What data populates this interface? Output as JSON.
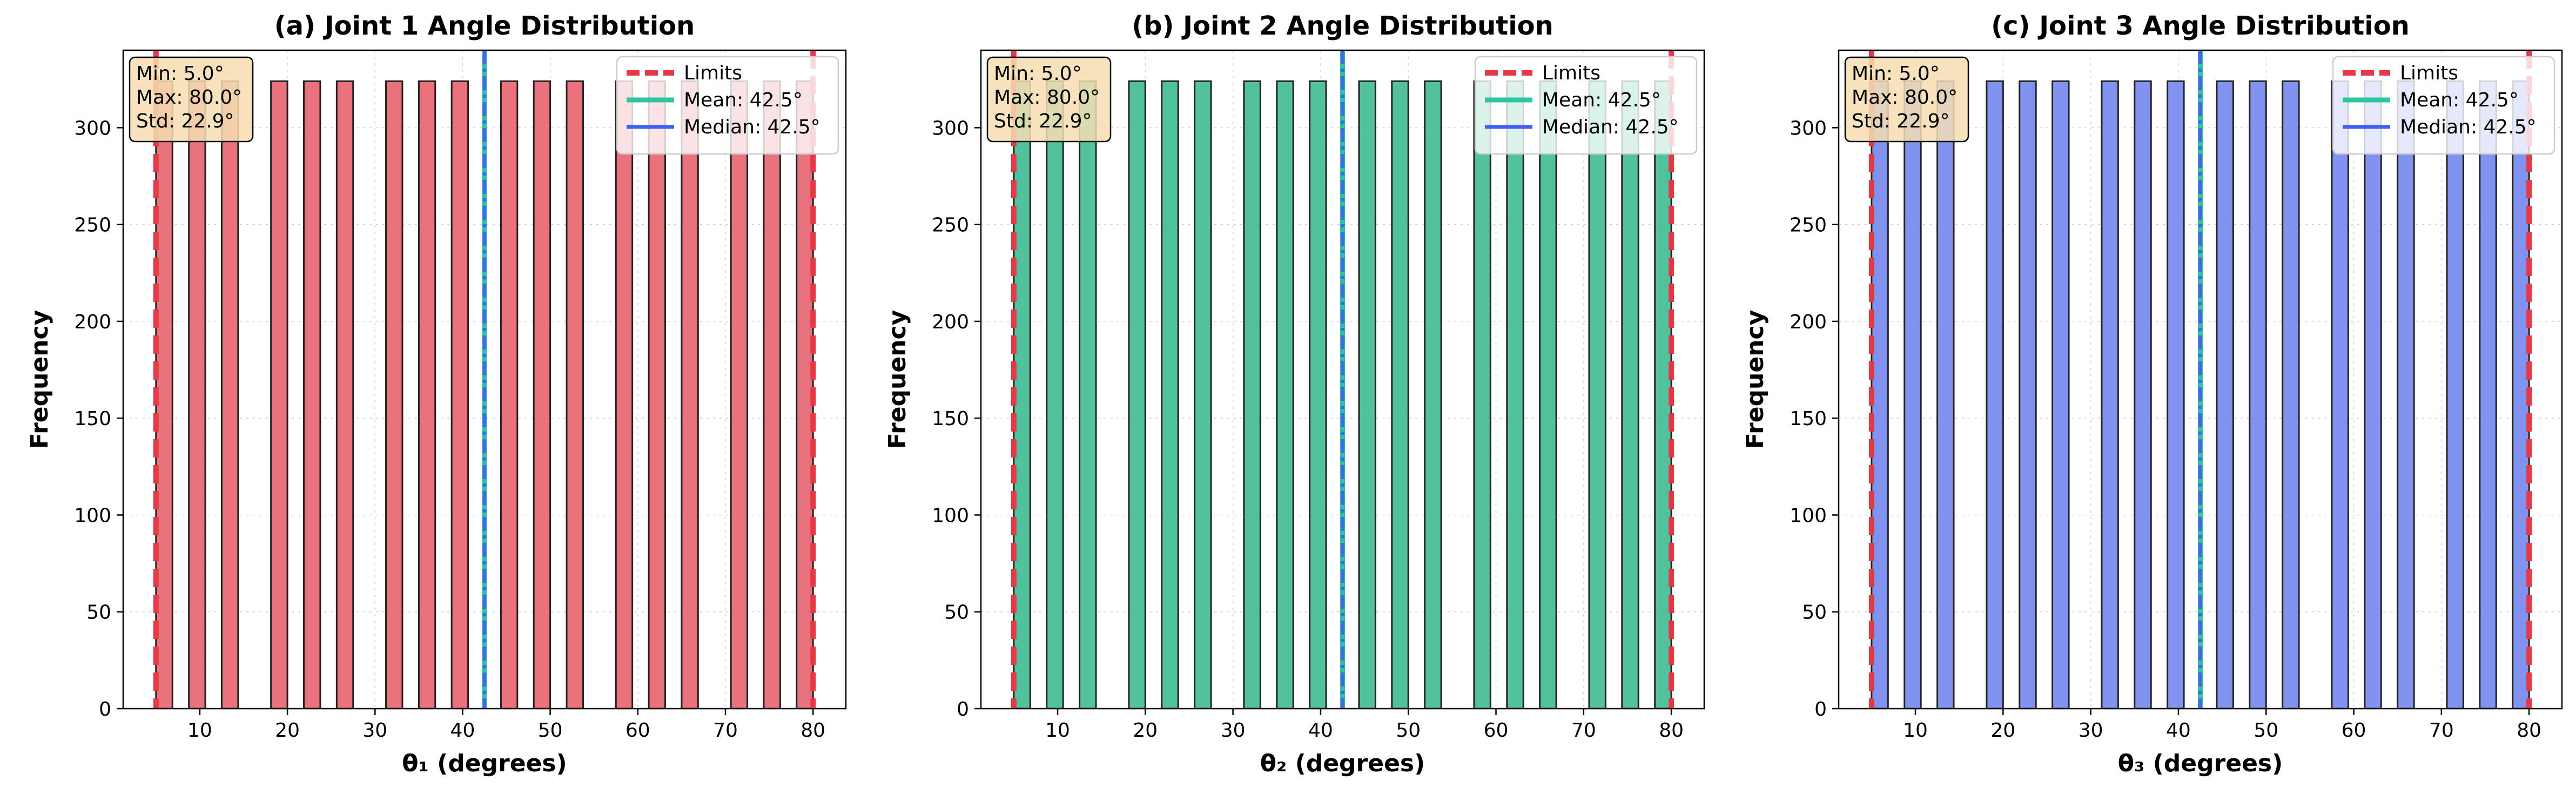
{
  "chart_data": [
    {
      "type": "bar",
      "title": "(a) Joint 1 Angle Distribution",
      "xlabel": "θ₁ (degrees)",
      "ylabel": "Frequency",
      "bar_color": "#e8636f",
      "xlim": [
        1.25,
        83.75
      ],
      "ylim": [
        0,
        340
      ],
      "xticks": [
        10,
        20,
        30,
        40,
        50,
        60,
        70,
        80
      ],
      "yticks": [
        0,
        50,
        100,
        150,
        200,
        250,
        300
      ],
      "bin_width": 1.875,
      "bin_starts": [
        5.0,
        8.75,
        12.5,
        18.125,
        21.875,
        25.625,
        31.25,
        35.0,
        38.75,
        44.375,
        48.125,
        51.875,
        57.5,
        61.25,
        65.0,
        70.625,
        74.375,
        78.125
      ],
      "values": [
        324,
        324,
        324,
        324,
        324,
        324,
        324,
        324,
        324,
        324,
        324,
        324,
        324,
        324,
        324,
        324,
        324,
        324
      ],
      "limits": [
        5.0,
        80.0
      ],
      "mean": 42.5,
      "median": 42.5,
      "legend": [
        "Limits",
        "Mean: 42.5°",
        "Median: 42.5°"
      ],
      "legend_position": "upper right",
      "stats": [
        "Min: 5.0°",
        "Max: 80.0°",
        "Std: 22.9°"
      ]
    },
    {
      "type": "bar",
      "title": "(b) Joint 2 Angle Distribution",
      "xlabel": "θ₂ (degrees)",
      "ylabel": "Frequency",
      "bar_color": "#3fba94",
      "xlim": [
        1.25,
        83.75
      ],
      "ylim": [
        0,
        340
      ],
      "xticks": [
        10,
        20,
        30,
        40,
        50,
        60,
        70,
        80
      ],
      "yticks": [
        0,
        50,
        100,
        150,
        200,
        250,
        300
      ],
      "bin_width": 1.875,
      "bin_starts": [
        5.0,
        8.75,
        12.5,
        18.125,
        21.875,
        25.625,
        31.25,
        35.0,
        38.75,
        44.375,
        48.125,
        51.875,
        57.5,
        61.25,
        65.0,
        70.625,
        74.375,
        78.125
      ],
      "values": [
        324,
        324,
        324,
        324,
        324,
        324,
        324,
        324,
        324,
        324,
        324,
        324,
        324,
        324,
        324,
        324,
        324,
        324
      ],
      "limits": [
        5.0,
        80.0
      ],
      "mean": 42.5,
      "median": 42.5,
      "legend": [
        "Limits",
        "Mean: 42.5°",
        "Median: 42.5°"
      ],
      "legend_position": "upper right",
      "stats": [
        "Min: 5.0°",
        "Max: 80.0°",
        "Std: 22.9°"
      ]
    },
    {
      "type": "bar",
      "title": "(c) Joint 3 Angle Distribution",
      "xlabel": "θ₃ (degrees)",
      "ylabel": "Frequency",
      "bar_color": "#7387ec",
      "xlim": [
        1.25,
        83.75
      ],
      "ylim": [
        0,
        340
      ],
      "xticks": [
        10,
        20,
        30,
        40,
        50,
        60,
        70,
        80
      ],
      "yticks": [
        0,
        50,
        100,
        150,
        200,
        250,
        300
      ],
      "bin_width": 1.875,
      "bin_starts": [
        5.0,
        8.75,
        12.5,
        18.125,
        21.875,
        25.625,
        31.25,
        35.0,
        38.75,
        44.375,
        48.125,
        51.875,
        57.5,
        61.25,
        65.0,
        70.625,
        74.375,
        78.125
      ],
      "values": [
        324,
        324,
        324,
        324,
        324,
        324,
        324,
        324,
        324,
        324,
        324,
        324,
        324,
        324,
        324,
        324,
        324,
        324
      ],
      "limits": [
        5.0,
        80.0
      ],
      "mean": 42.5,
      "median": 42.5,
      "legend": [
        "Limits",
        "Mean: 42.5°",
        "Median: 42.5°"
      ],
      "legend_position": "upper right",
      "stats": [
        "Min: 5.0°",
        "Max: 80.0°",
        "Std: 22.9°"
      ]
    }
  ],
  "colors": {
    "limits": "#e63946",
    "mean": "#2ec4a0",
    "median": "#4361ee",
    "stats_box_fill": "#f5deb3",
    "bar_edge": "#222222"
  }
}
